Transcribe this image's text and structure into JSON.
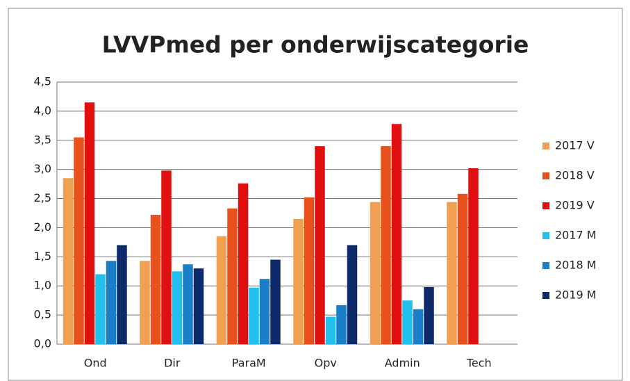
{
  "chart_data": {
    "type": "bar",
    "title": "LVVPmed per onderwijscategorie",
    "categories": [
      "Ond",
      "Dir",
      "ParaM",
      "Opv",
      "Admin",
      "Tech"
    ],
    "series": [
      {
        "name": "2017 V",
        "color": "#f0a050",
        "values": [
          2.85,
          1.43,
          1.85,
          2.15,
          2.44,
          2.44
        ]
      },
      {
        "name": "2018 V",
        "color": "#e8501c",
        "values": [
          3.55,
          2.22,
          2.33,
          2.52,
          3.4,
          2.58
        ]
      },
      {
        "name": "2019 V",
        "color": "#e01010",
        "values": [
          4.15,
          2.98,
          2.76,
          3.4,
          3.78,
          3.02
        ]
      },
      {
        "name": "2017 M",
        "color": "#22c0ee",
        "values": [
          1.2,
          1.25,
          0.97,
          0.47,
          0.75,
          null
        ]
      },
      {
        "name": "2018 M",
        "color": "#1a7ec8",
        "values": [
          1.43,
          1.37,
          1.12,
          0.67,
          0.6,
          null
        ]
      },
      {
        "name": "2019 M",
        "color": "#0d2a6a",
        "values": [
          1.7,
          1.3,
          1.45,
          1.7,
          0.98,
          null
        ]
      }
    ],
    "ylim": [
      0,
      4.5
    ],
    "yticks": [
      {
        "value": 0,
        "label": "0,0"
      },
      {
        "value": 0.5,
        "label": "0,5"
      },
      {
        "value": 1,
        "label": "1,0"
      },
      {
        "value": 1.5,
        "label": "1,5"
      },
      {
        "value": 2,
        "label": "2,0"
      },
      {
        "value": 2.5,
        "label": "2,5"
      },
      {
        "value": 3,
        "label": "3,0"
      },
      {
        "value": 3.5,
        "label": "3,5"
      },
      {
        "value": 4,
        "label": "4,0"
      },
      {
        "value": 4.5,
        "label": "4,5"
      }
    ],
    "grid": true,
    "legend": "right"
  }
}
